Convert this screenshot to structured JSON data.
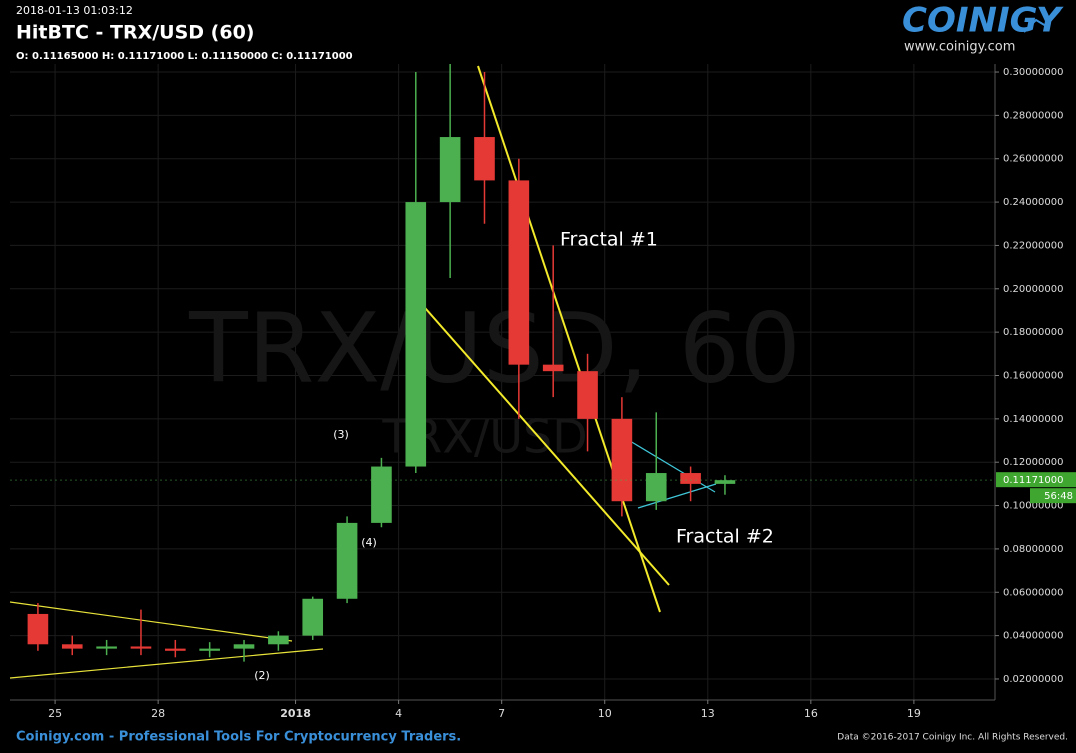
{
  "chart_data": {
    "type": "candlestick",
    "timestamp": "2018-01-13 01:03:12",
    "title": "HitBTC - TRX/USD (60)",
    "ohlc_text": "O: 0.11165000 H: 0.11171000 L: 0.11150000 C: 0.11171000",
    "watermark": "TRX/USD, 60",
    "watermark_sub": "TRX/USD",
    "logo": "COINIGY",
    "logo_url": "www.coinigy.com",
    "footer": "Coinigy.com - Professional Tools For Cryptocurrency Traders.",
    "copyright": "Data ©2016-2017 Coinigy Inc. All Rights Reserved.",
    "annotations": [
      "(2)",
      "(3)",
      "(4)",
      "Fractal #1",
      "Fractal #2"
    ],
    "x": [
      "2017-12-24",
      "2017-12-25",
      "2017-12-26",
      "2017-12-27",
      "2017-12-28",
      "2017-12-29",
      "2017-12-30",
      "2017-12-31",
      "2018-01-01",
      "2018-01-02",
      "2018-01-03",
      "2018-01-04",
      "2018-01-05",
      "2018-01-06",
      "2018-01-07",
      "2018-01-08",
      "2018-01-09",
      "2018-01-10",
      "2018-01-11",
      "2018-01-12",
      "2018-01-13"
    ],
    "open": [
      0.05,
      0.036,
      0.034,
      0.035,
      0.034,
      0.033,
      0.034,
      0.036,
      0.04,
      0.057,
      0.092,
      0.118,
      0.24,
      0.27,
      0.25,
      0.165,
      0.162,
      0.14,
      0.102,
      0.115,
      0.11
    ],
    "high": [
      0.055,
      0.04,
      0.038,
      0.052,
      0.038,
      0.037,
      0.038,
      0.042,
      0.058,
      0.095,
      0.122,
      0.3,
      0.31,
      0.3,
      0.26,
      0.22,
      0.17,
      0.15,
      0.143,
      0.118,
      0.114
    ],
    "low": [
      0.033,
      0.031,
      0.031,
      0.031,
      0.03,
      0.03,
      0.028,
      0.033,
      0.038,
      0.055,
      0.09,
      0.115,
      0.205,
      0.23,
      0.14,
      0.15,
      0.125,
      0.095,
      0.098,
      0.102,
      0.105
    ],
    "close": [
      0.036,
      0.034,
      0.035,
      0.034,
      0.033,
      0.034,
      0.036,
      0.04,
      0.057,
      0.092,
      0.118,
      0.24,
      0.27,
      0.25,
      0.165,
      0.162,
      0.14,
      0.102,
      0.115,
      0.11,
      0.11171
    ],
    "up_color": "#4caf50",
    "down_color": "#e53935",
    "last_price": {
      "value": 0.11171,
      "label": "0.11171000"
    },
    "countdown": "56:48",
    "xlim": [
      "2017-12-23T16:30",
      "2018-01-21T08:40"
    ],
    "xticks": [
      {
        "value": "2017-12-25",
        "label": "25"
      },
      {
        "value": "2017-12-28",
        "label": "28"
      },
      {
        "value": "2018-01-01",
        "label": "2018"
      },
      {
        "value": "2018-01-04",
        "label": "4"
      },
      {
        "value": "2018-01-07",
        "label": "7"
      },
      {
        "value": "2018-01-10",
        "label": "10"
      },
      {
        "value": "2018-01-13",
        "label": "13"
      },
      {
        "value": "2018-01-16",
        "label": "16"
      },
      {
        "value": "2018-01-19",
        "label": "19"
      }
    ],
    "ylim": [
      0.0103,
      0.3037
    ],
    "yticks": [
      {
        "value": 0.02,
        "label": "0.02000000"
      },
      {
        "value": 0.04,
        "label": "0.04000000"
      },
      {
        "value": 0.06,
        "label": "0.06000000"
      },
      {
        "value": 0.08,
        "label": "0.08000000"
      },
      {
        "value": 0.1,
        "label": "0.10000000"
      },
      {
        "value": 0.12,
        "label": "0.12000000"
      },
      {
        "value": 0.14,
        "label": "0.14000000"
      },
      {
        "value": 0.16,
        "label": "0.16000000"
      },
      {
        "value": 0.18,
        "label": "0.18000000"
      },
      {
        "value": 0.2,
        "label": "0.20000000"
      },
      {
        "value": 0.22,
        "label": "0.22000000"
      },
      {
        "value": 0.24,
        "label": "0.24000000"
      },
      {
        "value": 0.26,
        "label": "0.26000000"
      },
      {
        "value": 0.28,
        "label": "0.28000000"
      },
      {
        "value": 0.3,
        "label": "0.30000000"
      }
    ],
    "grid": true
  }
}
